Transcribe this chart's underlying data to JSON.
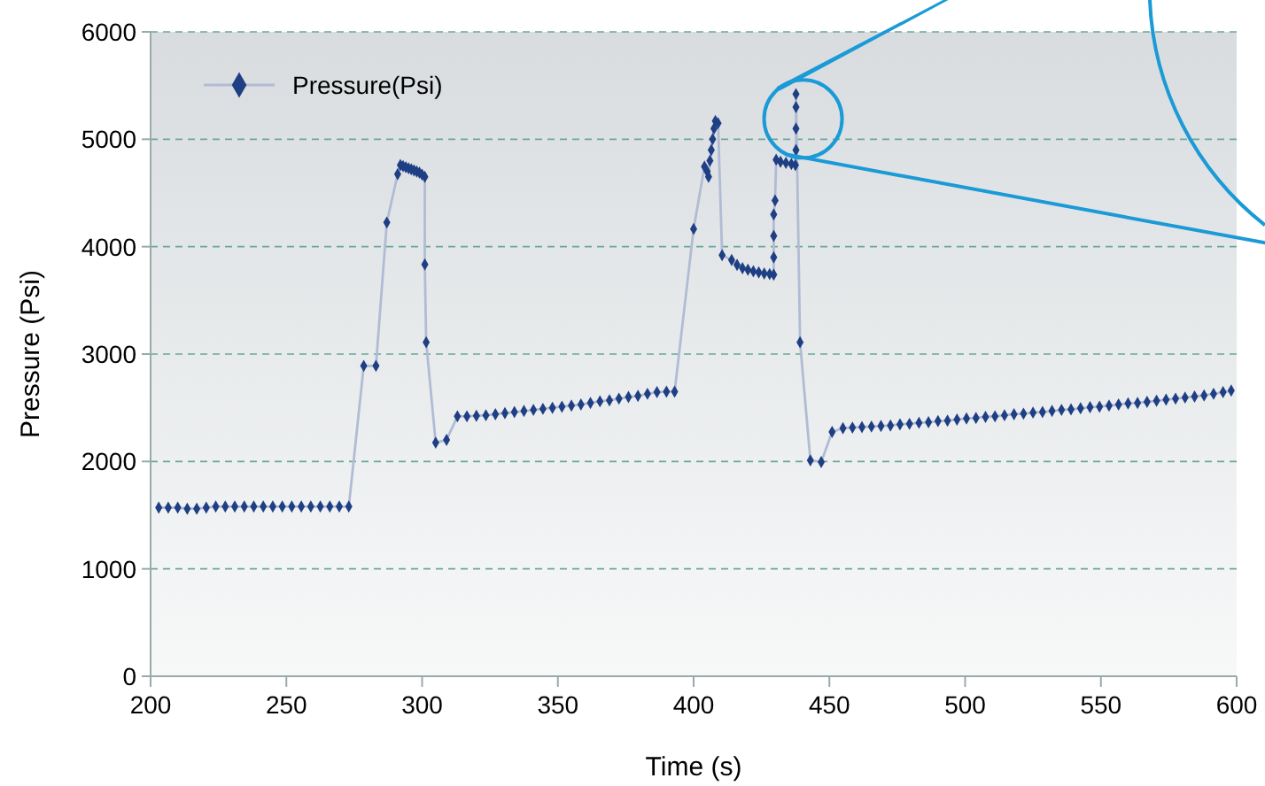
{
  "chart_data": {
    "type": "line",
    "xlabel": "Time (s)",
    "ylabel": "Pressure (Psi)",
    "xlim": [
      200,
      600
    ],
    "xticks": [
      200,
      250,
      300,
      350,
      400,
      450,
      500,
      550,
      600
    ],
    "ylim": [
      0,
      6000
    ],
    "yticks": [
      0,
      1000,
      2000,
      3000,
      4000,
      5000,
      6000
    ],
    "grid": "y",
    "legend": "top left",
    "marker": "diamond",
    "line_style": "solid",
    "series": [
      {
        "name": "Pressure(Psi)",
        "color": "#1f3f85",
        "x": [
          203,
          206.5,
          210,
          213.5,
          217,
          220.5,
          224,
          227.5,
          231,
          234.5,
          238,
          241.5,
          245,
          248.5,
          252,
          255.5,
          259,
          262.5,
          266,
          269.5,
          273,
          278.5,
          283,
          287,
          291,
          292,
          293,
          294,
          295,
          296,
          297,
          298,
          299,
          300,
          301,
          301,
          301.5,
          305,
          309,
          313,
          316.5,
          320,
          323.5,
          327,
          330.5,
          334,
          337.5,
          341,
          344.5,
          348,
          351.5,
          355,
          358.5,
          362,
          365.5,
          369,
          372.5,
          376,
          379.5,
          383,
          386.5,
          390,
          393,
          400,
          404,
          405,
          405.5,
          406,
          406.5,
          407,
          407.5,
          408,
          409,
          410.5,
          414,
          416,
          418,
          420,
          422,
          424,
          426,
          428,
          429.5,
          429.5,
          429.5,
          429.5,
          430,
          430.4,
          432,
          434,
          436,
          437.5,
          437.7,
          437.7,
          437.7,
          437.7,
          439.2,
          443,
          447,
          451,
          455,
          458.5,
          462,
          465.5,
          469,
          472.5,
          476,
          479.5,
          483,
          486.5,
          490,
          493.5,
          497,
          500.5,
          504,
          507.5,
          511,
          514.5,
          518,
          521.5,
          525,
          528.5,
          532,
          535.5,
          539,
          542.5,
          546,
          549.5,
          553,
          556.5,
          560,
          563.5,
          567,
          570.5,
          574,
          577.5,
          581,
          584.5,
          588,
          591.5,
          595,
          598
        ],
        "values": [
          1570,
          1570,
          1570,
          1560,
          1560,
          1570,
          1580,
          1580,
          1580,
          1580,
          1580,
          1580,
          1580,
          1580,
          1580,
          1580,
          1580,
          1580,
          1580,
          1580,
          1580,
          2890,
          2890,
          4225,
          4675,
          4760,
          4750,
          4740,
          4730,
          4720,
          4710,
          4700,
          4690,
          4670,
          4650,
          3835,
          3110,
          2175,
          2200,
          2420,
          2420,
          2425,
          2430,
          2440,
          2450,
          2460,
          2470,
          2480,
          2490,
          2500,
          2510,
          2520,
          2530,
          2545,
          2560,
          2570,
          2585,
          2600,
          2610,
          2630,
          2645,
          2650,
          2650,
          4165,
          4745,
          4700,
          4650,
          4800,
          4900,
          5000,
          5100,
          5170,
          5150,
          3920,
          3875,
          3830,
          3800,
          3785,
          3770,
          3760,
          3750,
          3745,
          3740,
          3900,
          4100,
          4300,
          4430,
          4810,
          4790,
          4780,
          4770,
          4760,
          4900,
          5100,
          5300,
          5420,
          3110,
          2010,
          1995,
          2275,
          2310,
          2315,
          2320,
          2325,
          2330,
          2335,
          2345,
          2350,
          2360,
          2365,
          2375,
          2380,
          2390,
          2400,
          2405,
          2415,
          2420,
          2430,
          2440,
          2445,
          2455,
          2460,
          2470,
          2480,
          2485,
          2495,
          2505,
          2510,
          2520,
          2530,
          2540,
          2545,
          2555,
          2565,
          2575,
          2585,
          2595,
          2605,
          2615,
          2630,
          2645,
          2660
        ]
      }
    ]
  }
}
